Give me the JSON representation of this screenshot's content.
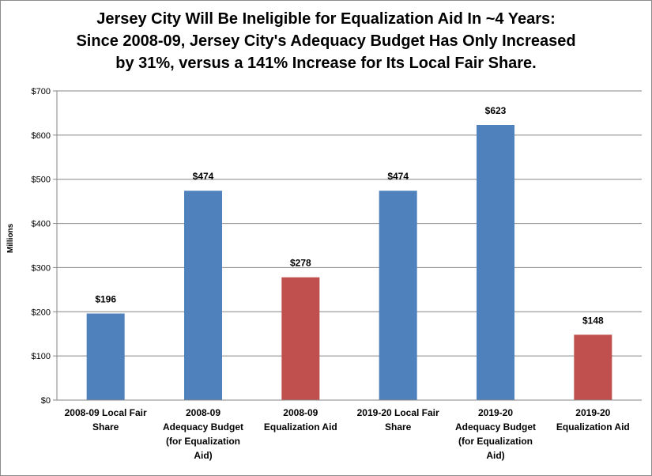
{
  "title_lines": [
    "Jersey City Will Be Ineligible for Equalization Aid In ~4 Years:",
    "Since 2008-09, Jersey City's Adequacy Budget Has Only Increased",
    "by 31%, versus a 141% Increase for Its Local Fair Share."
  ],
  "chart_data": {
    "type": "bar",
    "title": "Jersey City Will Be Ineligible for Equalization Aid In ~4 Years: Since 2008-09, Jersey City's Adequacy Budget Has Only Increased by 31%, versus a 141% Increase for Its Local Fair Share.",
    "xlabel": "",
    "ylabel": "Millions",
    "ylim": [
      0,
      700
    ],
    "yticks": [
      0,
      100,
      200,
      300,
      400,
      500,
      600,
      700
    ],
    "ytick_labels": [
      "$0",
      "$100",
      "$200",
      "$300",
      "$400",
      "$500",
      "$600",
      "$700"
    ],
    "grid": true,
    "legend": "none",
    "categories": [
      [
        "2008-09 Local Fair",
        "Share"
      ],
      [
        "2008-09",
        "Adequacy Budget",
        "(for Equalization",
        "Aid)"
      ],
      [
        "2008-09",
        "Equalization Aid"
      ],
      [
        "2019-20 Local Fair",
        "Share"
      ],
      [
        "2019-20",
        "Adequacy Budget",
        "(for Equalization",
        "Aid)"
      ],
      [
        "2019-20",
        "Equalization Aid"
      ]
    ],
    "values": [
      196,
      474,
      278,
      474,
      623,
      148
    ],
    "data_labels": [
      "$196",
      "$474",
      "$278",
      "$474",
      "$623",
      "$148"
    ],
    "bar_colors": [
      "#4f81bd",
      "#4f81bd",
      "#c0504d",
      "#4f81bd",
      "#4f81bd",
      "#c0504d"
    ]
  }
}
